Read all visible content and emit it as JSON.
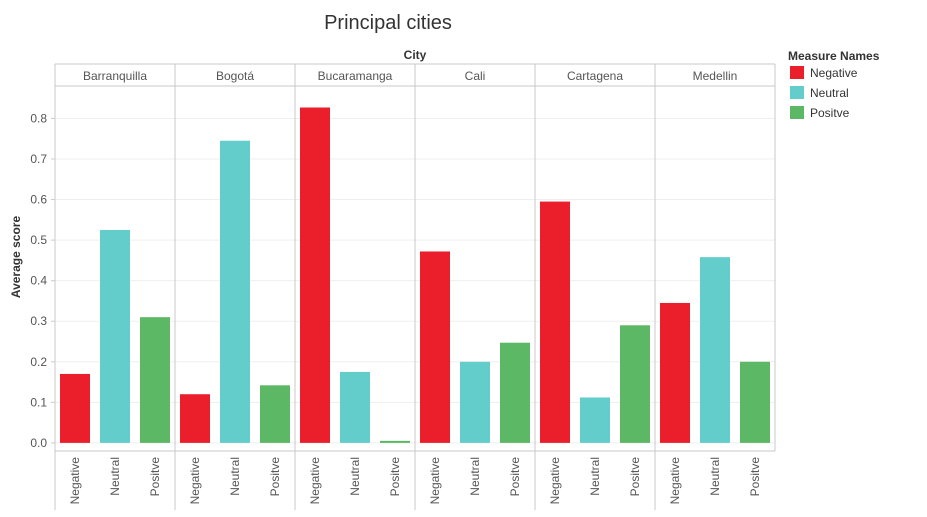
{
  "chart_data": {
    "type": "bar",
    "title": "Principal cities",
    "column_header": "City",
    "ylabel": "Average score",
    "ylim": [
      -0.02,
      0.88
    ],
    "yticks": [
      0.0,
      0.1,
      0.2,
      0.3,
      0.4,
      0.5,
      0.6,
      0.7,
      0.8
    ],
    "ytick_labels": [
      "0.0",
      "0.1",
      "0.2",
      "0.3",
      "0.4",
      "0.5",
      "0.6",
      "0.7",
      "0.8"
    ],
    "grid": true,
    "legend": {
      "title": "Measure Names",
      "placement": "right",
      "items": [
        {
          "label": "Negative",
          "color": "#ea1f2b"
        },
        {
          "label": "Neutral",
          "color": "#62cdcb"
        },
        {
          "label": "Positve",
          "color": "#5cb865"
        }
      ]
    },
    "measures": [
      "Negative",
      "Neutral",
      "Positve"
    ],
    "colors": [
      "#ea1f2b",
      "#62cdcb",
      "#5cb865"
    ],
    "cities": [
      {
        "name": "Barranquilla",
        "values": [
          0.17,
          0.525,
          0.31
        ]
      },
      {
        "name": "Bogotá",
        "values": [
          0.12,
          0.745,
          0.142
        ]
      },
      {
        "name": "Bucaramanga",
        "values": [
          0.827,
          0.175,
          0.005
        ]
      },
      {
        "name": "Cali",
        "values": [
          0.472,
          0.2,
          0.247
        ]
      },
      {
        "name": "Cartagena",
        "values": [
          0.595,
          0.112,
          0.29
        ]
      },
      {
        "name": "Medellin",
        "values": [
          0.345,
          0.458,
          0.2
        ]
      }
    ]
  }
}
